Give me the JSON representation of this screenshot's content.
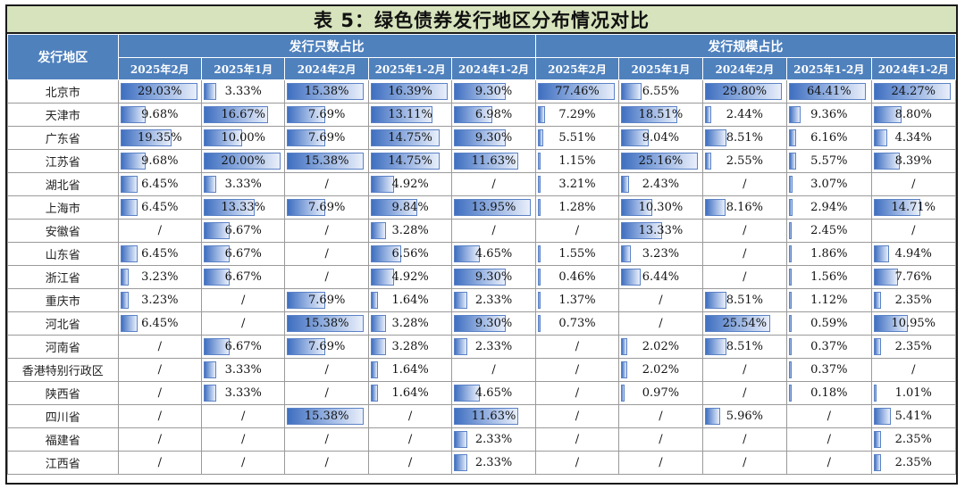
{
  "title": "表 5：绿色债券发行地区分布情况对比",
  "header": {
    "region_label": "发行地区",
    "group1": "发行只数占比",
    "group2": "发行规模占比",
    "periods": [
      "2025年2月",
      "2025年1月",
      "2024年2月",
      "2025年1-2月",
      "2024年1-2月"
    ]
  },
  "rows": [
    {
      "region": "北京市",
      "count": [
        "29.03%",
        "3.33%",
        "15.38%",
        "16.39%",
        "9.30%"
      ],
      "scale": [
        "77.46%",
        "6.55%",
        "29.80%",
        "64.41%",
        "24.27%"
      ]
    },
    {
      "region": "天津市",
      "count": [
        "9.68%",
        "16.67%",
        "7.69%",
        "13.11%",
        "6.98%"
      ],
      "scale": [
        "7.29%",
        "18.51%",
        "2.44%",
        "9.36%",
        "8.80%"
      ]
    },
    {
      "region": "广东省",
      "count": [
        "19.35%",
        "10.00%",
        "7.69%",
        "14.75%",
        "9.30%"
      ],
      "scale": [
        "5.51%",
        "9.04%",
        "8.51%",
        "6.16%",
        "4.34%"
      ]
    },
    {
      "region": "江苏省",
      "count": [
        "9.68%",
        "20.00%",
        "15.38%",
        "14.75%",
        "11.63%"
      ],
      "scale": [
        "1.15%",
        "25.16%",
        "2.55%",
        "5.57%",
        "8.39%"
      ]
    },
    {
      "region": "湖北省",
      "count": [
        "6.45%",
        "3.33%",
        "/",
        "4.92%",
        "/"
      ],
      "scale": [
        "3.21%",
        "2.43%",
        "/",
        "3.07%",
        "/"
      ]
    },
    {
      "region": "上海市",
      "count": [
        "6.45%",
        "13.33%",
        "7.69%",
        "9.84%",
        "13.95%"
      ],
      "scale": [
        "1.28%",
        "10.30%",
        "8.16%",
        "2.94%",
        "14.71%"
      ]
    },
    {
      "region": "安徽省",
      "count": [
        "/",
        "6.67%",
        "/",
        "3.28%",
        "/"
      ],
      "scale": [
        "/",
        "13.33%",
        "/",
        "2.45%",
        "/"
      ]
    },
    {
      "region": "山东省",
      "count": [
        "6.45%",
        "6.67%",
        "/",
        "6.56%",
        "4.65%"
      ],
      "scale": [
        "1.55%",
        "3.23%",
        "/",
        "1.86%",
        "4.94%"
      ]
    },
    {
      "region": "浙江省",
      "count": [
        "3.23%",
        "6.67%",
        "/",
        "4.92%",
        "9.30%"
      ],
      "scale": [
        "0.46%",
        "6.44%",
        "/",
        "1.56%",
        "7.76%"
      ]
    },
    {
      "region": "重庆市",
      "count": [
        "3.23%",
        "/",
        "7.69%",
        "1.64%",
        "2.33%"
      ],
      "scale": [
        "1.37%",
        "/",
        "8.51%",
        "1.12%",
        "2.35%"
      ]
    },
    {
      "region": "河北省",
      "count": [
        "6.45%",
        "/",
        "15.38%",
        "3.28%",
        "9.30%"
      ],
      "scale": [
        "0.73%",
        "/",
        "25.54%",
        "0.59%",
        "10.95%"
      ]
    },
    {
      "region": "河南省",
      "count": [
        "/",
        "6.67%",
        "7.69%",
        "3.28%",
        "2.33%"
      ],
      "scale": [
        "/",
        "2.02%",
        "8.51%",
        "0.37%",
        "2.35%"
      ]
    },
    {
      "region": "香港特别行政区",
      "count": [
        "/",
        "3.33%",
        "/",
        "1.64%",
        "/"
      ],
      "scale": [
        "/",
        "2.02%",
        "/",
        "0.37%",
        "/"
      ]
    },
    {
      "region": "陕西省",
      "count": [
        "/",
        "3.33%",
        "/",
        "1.64%",
        "4.65%"
      ],
      "scale": [
        "/",
        "0.97%",
        "/",
        "0.18%",
        "1.01%"
      ]
    },
    {
      "region": "四川省",
      "count": [
        "/",
        "/",
        "15.38%",
        "/",
        "11.63%"
      ],
      "scale": [
        "/",
        "/",
        "5.96%",
        "/",
        "5.41%"
      ]
    },
    {
      "region": "福建省",
      "count": [
        "/",
        "/",
        "/",
        "/",
        "2.33%"
      ],
      "scale": [
        "/",
        "/",
        "/",
        "/",
        "2.35%"
      ]
    },
    {
      "region": "江西省",
      "count": [
        "/",
        "/",
        "/",
        "/",
        "2.33%"
      ],
      "scale": [
        "/",
        "/",
        "/",
        "/",
        "2.35%"
      ]
    }
  ]
}
